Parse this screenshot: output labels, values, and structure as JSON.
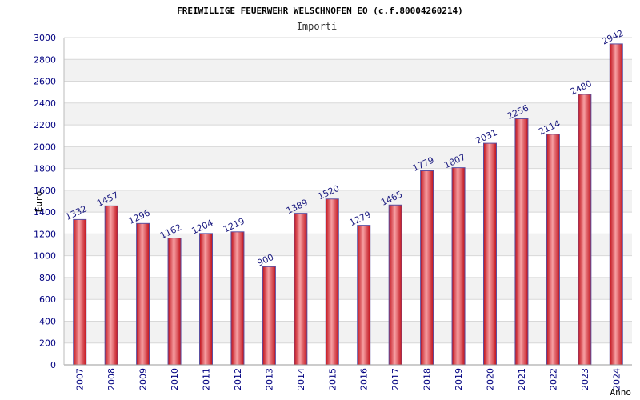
{
  "chart_data": {
    "type": "bar",
    "title": "FREIWILLIGE FEUERWEHR WELSCHNOFEN EO (c.f.80004260214)",
    "subtitle": "Importi",
    "xlabel": "Anno",
    "ylabel": "Euro",
    "categories": [
      "2007",
      "2008",
      "2009",
      "2010",
      "2011",
      "2012",
      "2013",
      "2014",
      "2015",
      "2016",
      "2017",
      "2018",
      "2019",
      "2020",
      "2021",
      "2022",
      "2023",
      "2024"
    ],
    "values": [
      1332,
      1457,
      1296,
      1162,
      1204,
      1219,
      900,
      1389,
      1520,
      1279,
      1465,
      1779,
      1807,
      2031,
      2256,
      2114,
      2480,
      2942
    ],
    "ylim": [
      0,
      3000
    ],
    "yticks": [
      0,
      200,
      400,
      600,
      800,
      1000,
      1200,
      1400,
      1600,
      1800,
      2000,
      2200,
      2400,
      2600,
      2800,
      3000
    ],
    "grid": true,
    "colors": {
      "bar": "#e8202a",
      "bar_highlight": "#f7a0a3",
      "bar_edge": "#5a4fa0",
      "band": "#f2f2f2",
      "gridline": "#d8d8d8",
      "label": "#1a1a80",
      "axis_text": "#000080"
    }
  }
}
